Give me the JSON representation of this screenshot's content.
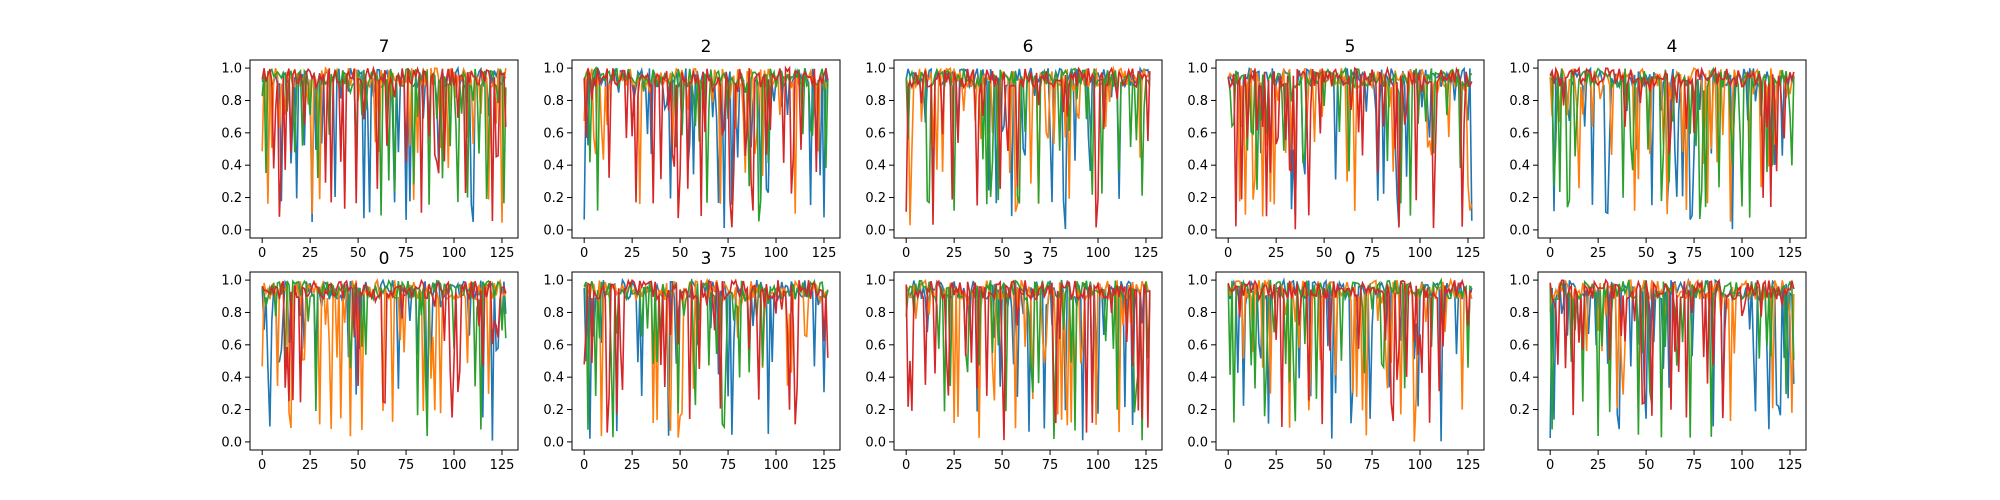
{
  "chart_data": [
    {
      "type": "line",
      "title": "7",
      "ylim": [
        0,
        1
      ],
      "xticks": [
        "0",
        "25",
        "50",
        "75",
        "100",
        "125"
      ],
      "yticks": [
        "0.0",
        "0.2",
        "0.4",
        "0.6",
        "0.8",
        "1.0"
      ],
      "seed": 11
    },
    {
      "type": "line",
      "title": "2",
      "ylim": [
        0,
        1
      ],
      "xticks": [
        "0",
        "25",
        "50",
        "75",
        "100",
        "125"
      ],
      "yticks": [
        "0.0",
        "0.2",
        "0.4",
        "0.6",
        "0.8",
        "1.0"
      ],
      "seed": 23
    },
    {
      "type": "line",
      "title": "6",
      "ylim": [
        0,
        1
      ],
      "xticks": [
        "0",
        "25",
        "50",
        "75",
        "100",
        "125"
      ],
      "yticks": [
        "0.0",
        "0.2",
        "0.4",
        "0.6",
        "0.8",
        "1.0"
      ],
      "seed": 37
    },
    {
      "type": "line",
      "title": "5",
      "ylim": [
        0,
        1
      ],
      "xticks": [
        "0",
        "25",
        "50",
        "75",
        "100",
        "125"
      ],
      "yticks": [
        "0.0",
        "0.2",
        "0.4",
        "0.6",
        "0.8",
        "1.0"
      ],
      "seed": 41
    },
    {
      "type": "line",
      "title": "4",
      "ylim": [
        0,
        1
      ],
      "xticks": [
        "0",
        "25",
        "50",
        "75",
        "100",
        "125"
      ],
      "yticks": [
        "0.0",
        "0.2",
        "0.4",
        "0.6",
        "0.8",
        "1.0"
      ],
      "seed": 53
    },
    {
      "type": "line",
      "title": "0",
      "ylim": [
        0,
        1
      ],
      "xticks": [
        "0",
        "25",
        "50",
        "75",
        "100",
        "125"
      ],
      "yticks": [
        "0.0",
        "0.2",
        "0.4",
        "0.6",
        "0.8",
        "1.0"
      ],
      "seed": 67
    },
    {
      "type": "line",
      "title": "3",
      "ylim": [
        0,
        1
      ],
      "xticks": [
        "0",
        "25",
        "50",
        "75",
        "100",
        "125"
      ],
      "yticks": [
        "0.0",
        "0.2",
        "0.4",
        "0.6",
        "0.8",
        "1.0"
      ],
      "seed": 71
    },
    {
      "type": "line",
      "title": "3",
      "ylim": [
        0,
        1
      ],
      "xticks": [
        "0",
        "25",
        "50",
        "75",
        "100",
        "125"
      ],
      "yticks": [
        "0.0",
        "0.2",
        "0.4",
        "0.6",
        "0.8",
        "1.0"
      ],
      "seed": 83
    },
    {
      "type": "line",
      "title": "0",
      "ylim": [
        0,
        1
      ],
      "xticks": [
        "0",
        "25",
        "50",
        "75",
        "100",
        "125"
      ],
      "yticks": [
        "0.0",
        "0.2",
        "0.4",
        "0.6",
        "0.8",
        "1.0"
      ],
      "seed": 97
    },
    {
      "type": "line",
      "title": "3",
      "ylim": [
        0,
        1
      ],
      "xticks": [
        "0",
        "25",
        "50",
        "75",
        "100",
        "125"
      ],
      "yticks": [
        "0.2",
        "0.4",
        "0.6",
        "0.8",
        "1.0"
      ],
      "seed": 101
    }
  ],
  "series_colors": [
    "#1f77b4",
    "#ff7f0e",
    "#2ca02c",
    "#d62728"
  ]
}
